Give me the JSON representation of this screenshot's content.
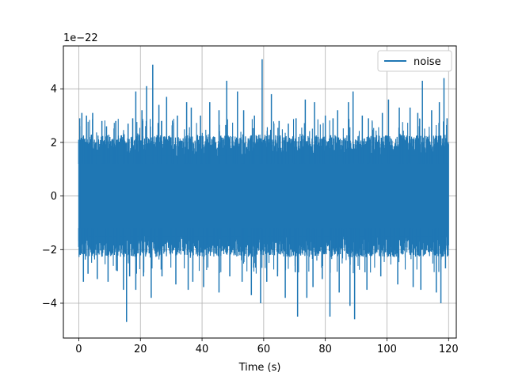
{
  "chart_data": {
    "type": "line",
    "title": "",
    "xlabel": "Time (s)",
    "ylabel": "",
    "offset_text": "1e−22",
    "xlim": [
      -5,
      122.5
    ],
    "ylim": [
      -5.3,
      5.6
    ],
    "x_ticks": [
      0,
      20,
      40,
      60,
      80,
      100,
      120
    ],
    "x_tick_labels": [
      "0",
      "20",
      "40",
      "60",
      "80",
      "100",
      "120"
    ],
    "y_ticks": [
      -4,
      -2,
      0,
      2,
      4
    ],
    "y_tick_labels": [
      "−4",
      "−2",
      "0",
      "2",
      "4"
    ],
    "grid": true,
    "legend_position": "top-right",
    "series": [
      {
        "name": "noise",
        "color": "#1f77b4",
        "x_range": [
          0,
          120
        ],
        "band": [
          -1.9,
          1.9
        ],
        "upper_peaks": [
          [
            0.0,
            2.1
          ],
          [
            0.3,
            2.9
          ],
          [
            1.0,
            3.1
          ],
          [
            2.5,
            3.0
          ],
          [
            4.5,
            3.1
          ],
          [
            7.5,
            2.8
          ],
          [
            9.0,
            2.6
          ],
          [
            12.0,
            2.8
          ],
          [
            16.0,
            2.7
          ],
          [
            17.5,
            2.9
          ],
          [
            18.5,
            3.9
          ],
          [
            20.5,
            3.2
          ],
          [
            22.0,
            4.1
          ],
          [
            24.0,
            4.9
          ],
          [
            26.0,
            3.4
          ],
          [
            28.5,
            3.7
          ],
          [
            32.0,
            3.0
          ],
          [
            35.0,
            3.5
          ],
          [
            36.5,
            3.3
          ],
          [
            39.5,
            3.0
          ],
          [
            42.5,
            3.5
          ],
          [
            45.5,
            3.2
          ],
          [
            48.0,
            4.3
          ],
          [
            51.5,
            3.9
          ],
          [
            53.5,
            3.2
          ],
          [
            57.0,
            3.0
          ],
          [
            59.5,
            5.1
          ],
          [
            62.5,
            3.8
          ],
          [
            65.0,
            2.8
          ],
          [
            68.0,
            2.7
          ],
          [
            70.5,
            2.9
          ],
          [
            73.5,
            3.6
          ],
          [
            76.5,
            3.5
          ],
          [
            80.0,
            3.0
          ],
          [
            82.5,
            2.9
          ],
          [
            84.0,
            3.2
          ],
          [
            87.5,
            3.5
          ],
          [
            89.0,
            3.9
          ],
          [
            92.0,
            3.0
          ],
          [
            94.0,
            2.9
          ],
          [
            98.5,
            3.1
          ],
          [
            100.5,
            3.6
          ],
          [
            104.0,
            3.3
          ],
          [
            107.5,
            3.3
          ],
          [
            110.0,
            3.1
          ],
          [
            111.5,
            4.3
          ],
          [
            114.5,
            3.2
          ],
          [
            117.0,
            3.5
          ],
          [
            118.5,
            4.4
          ],
          [
            119.5,
            2.9
          ]
        ],
        "lower_peaks": [
          [
            0.0,
            -1.9
          ],
          [
            0.5,
            -2.2
          ],
          [
            1.5,
            -3.2
          ],
          [
            3.0,
            -2.9
          ],
          [
            6.0,
            -3.1
          ],
          [
            9.5,
            -3.2
          ],
          [
            12.5,
            -2.8
          ],
          [
            14.5,
            -3.5
          ],
          [
            15.5,
            -4.7
          ],
          [
            16.5,
            -3.0
          ],
          [
            18.5,
            -3.5
          ],
          [
            21.0,
            -3.0
          ],
          [
            23.5,
            -3.8
          ],
          [
            27.0,
            -3.0
          ],
          [
            31.5,
            -3.3
          ],
          [
            35.5,
            -3.5
          ],
          [
            37.0,
            -3.2
          ],
          [
            40.5,
            -3.4
          ],
          [
            45.5,
            -3.6
          ],
          [
            49.0,
            -3.0
          ],
          [
            53.0,
            -3.2
          ],
          [
            56.0,
            -3.7
          ],
          [
            59.0,
            -4.0
          ],
          [
            61.0,
            -3.2
          ],
          [
            64.5,
            -3.0
          ],
          [
            67.0,
            -3.8
          ],
          [
            71.0,
            -4.5
          ],
          [
            74.0,
            -3.8
          ],
          [
            76.0,
            -3.4
          ],
          [
            79.0,
            -3.1
          ],
          [
            81.5,
            -4.5
          ],
          [
            84.5,
            -3.6
          ],
          [
            88.0,
            -4.1
          ],
          [
            89.5,
            -4.6
          ],
          [
            93.5,
            -3.5
          ],
          [
            98.0,
            -3.0
          ],
          [
            103.5,
            -3.3
          ],
          [
            108.5,
            -3.4
          ],
          [
            111.0,
            -3.5
          ],
          [
            116.0,
            -3.6
          ],
          [
            117.5,
            -4.0
          ],
          [
            119.0,
            -2.7
          ]
        ]
      }
    ]
  }
}
